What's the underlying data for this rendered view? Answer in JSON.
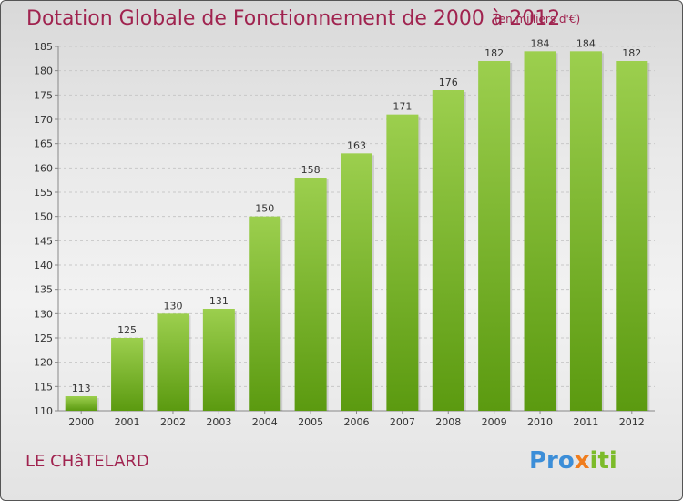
{
  "header": {
    "title": "Dotation Globale de Fonctionnement de 2000 à 2012",
    "unit_note": "(en milliers d'€)"
  },
  "footer": {
    "commune": "LE CHâTELARD",
    "logo_text": "Proxiti"
  },
  "colors": {
    "title": "#a0234f",
    "bar_top": "#9ccf4e",
    "bar_bottom": "#5b9a10"
  },
  "chart_data": {
    "type": "bar",
    "title": "Dotation Globale de Fonctionnement de 2000 à 2012",
    "subtitle": "(en milliers d'€)",
    "xlabel": "",
    "ylabel": "",
    "categories": [
      "2000",
      "2001",
      "2002",
      "2003",
      "2004",
      "2005",
      "2006",
      "2007",
      "2008",
      "2009",
      "2010",
      "2011",
      "2012"
    ],
    "values": [
      113,
      125,
      130,
      131,
      150,
      158,
      163,
      171,
      176,
      182,
      184,
      184,
      182
    ],
    "ylim": [
      110,
      185
    ],
    "yticks": [
      110,
      115,
      120,
      125,
      130,
      135,
      140,
      145,
      150,
      155,
      160,
      165,
      170,
      175,
      180,
      185
    ],
    "grid": true,
    "data_labels": true
  }
}
